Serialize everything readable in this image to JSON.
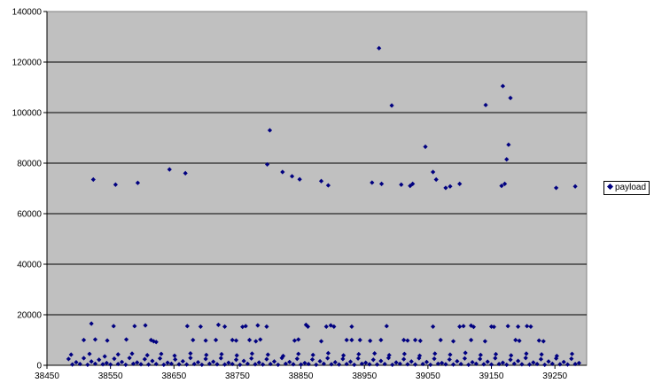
{
  "chart_data": {
    "type": "scatter",
    "title": "",
    "xlabel": "",
    "ylabel": "",
    "xlim": [
      38450,
      39300
    ],
    "ylim": [
      0,
      140000
    ],
    "x_ticks": [
      "38450",
      "38550",
      "38650",
      "38750",
      "38850",
      "38950",
      "39050",
      "39150",
      "39250"
    ],
    "y_ticks": [
      "0",
      "20000",
      "40000",
      "60000",
      "80000",
      "100000",
      "120000",
      "140000"
    ],
    "grid": "horizontal",
    "plot_background": "#c0c0c0",
    "marker_color": "#000080",
    "legend_position": "right",
    "series": [
      {
        "name": "payload",
        "points": [
          [
            38523,
            73500
          ],
          [
            38558,
            71500
          ],
          [
            38593,
            72200
          ],
          [
            38643,
            77500
          ],
          [
            38668,
            76000
          ],
          [
            38797,
            79500
          ],
          [
            38801,
            93000
          ],
          [
            38821,
            76500
          ],
          [
            38836,
            74800
          ],
          [
            38848,
            73600
          ],
          [
            38882,
            72900
          ],
          [
            38893,
            71200
          ],
          [
            38962,
            72300
          ],
          [
            38973,
            125500
          ],
          [
            38977,
            71800
          ],
          [
            38993,
            102800
          ],
          [
            39008,
            71500
          ],
          [
            39022,
            71000
          ],
          [
            39026,
            71800
          ],
          [
            39046,
            86500
          ],
          [
            39058,
            76500
          ],
          [
            39063,
            73500
          ],
          [
            39078,
            70200
          ],
          [
            39085,
            70800
          ],
          [
            39100,
            71800
          ],
          [
            39141,
            103000
          ],
          [
            39166,
            71000
          ],
          [
            39168,
            110500
          ],
          [
            39171,
            71800
          ],
          [
            39174,
            81500
          ],
          [
            39177,
            87300
          ],
          [
            39180,
            105800
          ],
          [
            39252,
            70200
          ],
          [
            39282,
            70800
          ],
          [
            38520,
            16500
          ],
          [
            38555,
            15500
          ],
          [
            38588,
            15500
          ],
          [
            38605,
            15800
          ],
          [
            38671,
            15500
          ],
          [
            38692,
            15300
          ],
          [
            38720,
            16000
          ],
          [
            38730,
            15300
          ],
          [
            38758,
            15200
          ],
          [
            38763,
            15500
          ],
          [
            38782,
            15800
          ],
          [
            38796,
            15300
          ],
          [
            38858,
            16000
          ],
          [
            38861,
            15300
          ],
          [
            38890,
            15300
          ],
          [
            38897,
            15800
          ],
          [
            38902,
            15300
          ],
          [
            38930,
            15300
          ],
          [
            38985,
            15500
          ],
          [
            39058,
            15300
          ],
          [
            39100,
            15300
          ],
          [
            39106,
            15500
          ],
          [
            39118,
            15700
          ],
          [
            39122,
            15200
          ],
          [
            39150,
            15300
          ],
          [
            39154,
            15200
          ],
          [
            39176,
            15500
          ],
          [
            39192,
            15300
          ],
          [
            39206,
            15500
          ],
          [
            39212,
            15300
          ],
          [
            38508,
            10000
          ],
          [
            38526,
            10200
          ],
          [
            38545,
            9800
          ],
          [
            38575,
            10200
          ],
          [
            38614,
            10000
          ],
          [
            38618,
            9500
          ],
          [
            38622,
            9200
          ],
          [
            38680,
            10000
          ],
          [
            38700,
            9800
          ],
          [
            38716,
            10000
          ],
          [
            38742,
            10000
          ],
          [
            38748,
            9800
          ],
          [
            38769,
            10000
          ],
          [
            38779,
            9500
          ],
          [
            38786,
            10200
          ],
          [
            38840,
            9800
          ],
          [
            38846,
            10200
          ],
          [
            38882,
            9500
          ],
          [
            38922,
            10000
          ],
          [
            38930,
            10000
          ],
          [
            38943,
            10000
          ],
          [
            38959,
            9700
          ],
          [
            38976,
            10000
          ],
          [
            39012,
            10000
          ],
          [
            39018,
            9800
          ],
          [
            39030,
            10000
          ],
          [
            39038,
            9700
          ],
          [
            39070,
            10000
          ],
          [
            39090,
            9500
          ],
          [
            39118,
            10000
          ],
          [
            39140,
            9500
          ],
          [
            39188,
            10000
          ],
          [
            39194,
            9700
          ],
          [
            39225,
            9800
          ],
          [
            39232,
            9500
          ],
          [
            38488,
            4200
          ],
          [
            38517,
            4500
          ],
          [
            38541,
            3500
          ],
          [
            38562,
            4300
          ],
          [
            38584,
            4600
          ],
          [
            38608,
            4000
          ],
          [
            38630,
            4500
          ],
          [
            38651,
            3800
          ],
          [
            38676,
            4700
          ],
          [
            38701,
            4100
          ],
          [
            38725,
            4400
          ],
          [
            38749,
            3900
          ],
          [
            38773,
            4600
          ],
          [
            38798,
            4200
          ],
          [
            38822,
            3700
          ],
          [
            38846,
            4500
          ],
          [
            38869,
            4100
          ],
          [
            38893,
            4800
          ],
          [
            38917,
            3900
          ],
          [
            38941,
            4400
          ],
          [
            38966,
            4700
          ],
          [
            38989,
            4000
          ],
          [
            39013,
            4500
          ],
          [
            39037,
            3800
          ],
          [
            39061,
            4600
          ],
          [
            39085,
            4200
          ],
          [
            39109,
            4900
          ],
          [
            39133,
            4100
          ],
          [
            39157,
            4400
          ],
          [
            39181,
            3900
          ],
          [
            39205,
            4600
          ],
          [
            39229,
            4300
          ],
          [
            39253,
            3700
          ],
          [
            39277,
            4500
          ],
          [
            38484,
            2500
          ],
          [
            38496,
            1200
          ],
          [
            38508,
            2800
          ],
          [
            38520,
            1500
          ],
          [
            38532,
            2200
          ],
          [
            38544,
            900
          ],
          [
            38556,
            2600
          ],
          [
            38568,
            1300
          ],
          [
            38580,
            2900
          ],
          [
            38592,
            1100
          ],
          [
            38604,
            2400
          ],
          [
            38616,
            1700
          ],
          [
            38628,
            2700
          ],
          [
            38640,
            1000
          ],
          [
            38652,
            2300
          ],
          [
            38664,
            1600
          ],
          [
            38676,
            2900
          ],
          [
            38688,
            1200
          ],
          [
            38700,
            2500
          ],
          [
            38712,
            1400
          ],
          [
            38724,
            2800
          ],
          [
            38736,
            1000
          ],
          [
            38748,
            2200
          ],
          [
            38760,
            1700
          ],
          [
            38772,
            2700
          ],
          [
            38784,
            1100
          ],
          [
            38796,
            2400
          ],
          [
            38808,
            1500
          ],
          [
            38820,
            2900
          ],
          [
            38832,
            1300
          ],
          [
            38844,
            2600
          ],
          [
            38856,
            900
          ],
          [
            38868,
            2300
          ],
          [
            38880,
            1600
          ],
          [
            38892,
            2800
          ],
          [
            38904,
            1200
          ],
          [
            38916,
            2500
          ],
          [
            38928,
            1400
          ],
          [
            38940,
            2700
          ],
          [
            38952,
            1000
          ],
          [
            38964,
            2200
          ],
          [
            38976,
            1700
          ],
          [
            38988,
            2900
          ],
          [
            39000,
            1100
          ],
          [
            39012,
            2400
          ],
          [
            39024,
            1500
          ],
          [
            39036,
            2800
          ],
          [
            39048,
            1300
          ],
          [
            39060,
            2600
          ],
          [
            39072,
            900
          ],
          [
            39084,
            2300
          ],
          [
            39096,
            1600
          ],
          [
            39108,
            2700
          ],
          [
            39120,
            1200
          ],
          [
            39132,
            2500
          ],
          [
            39144,
            1400
          ],
          [
            39156,
            2800
          ],
          [
            39168,
            1000
          ],
          [
            39180,
            2200
          ],
          [
            39192,
            1700
          ],
          [
            39204,
            2900
          ],
          [
            39216,
            1100
          ],
          [
            39228,
            2400
          ],
          [
            39240,
            1500
          ],
          [
            39252,
            2700
          ],
          [
            39264,
            1300
          ],
          [
            39276,
            2600
          ],
          [
            39288,
            900
          ],
          [
            38490,
            300
          ],
          [
            38502,
            500
          ],
          [
            38514,
            200
          ],
          [
            38526,
            600
          ],
          [
            38538,
            400
          ],
          [
            38550,
            300
          ],
          [
            38562,
            500
          ],
          [
            38574,
            200
          ],
          [
            38586,
            600
          ],
          [
            38598,
            400
          ],
          [
            38610,
            300
          ],
          [
            38622,
            500
          ],
          [
            38634,
            200
          ],
          [
            38646,
            600
          ],
          [
            38658,
            400
          ],
          [
            38670,
            300
          ],
          [
            38682,
            500
          ],
          [
            38694,
            200
          ],
          [
            38706,
            600
          ],
          [
            38718,
            400
          ],
          [
            38730,
            300
          ],
          [
            38742,
            500
          ],
          [
            38754,
            200
          ],
          [
            38766,
            600
          ],
          [
            38778,
            400
          ],
          [
            38790,
            300
          ],
          [
            38802,
            500
          ],
          [
            38814,
            200
          ],
          [
            38826,
            600
          ],
          [
            38838,
            400
          ],
          [
            38850,
            300
          ],
          [
            38862,
            500
          ],
          [
            38874,
            200
          ],
          [
            38886,
            600
          ],
          [
            38898,
            400
          ],
          [
            38910,
            300
          ],
          [
            38922,
            500
          ],
          [
            38934,
            200
          ],
          [
            38946,
            600
          ],
          [
            38958,
            400
          ],
          [
            38970,
            300
          ],
          [
            38982,
            500
          ],
          [
            38994,
            200
          ],
          [
            39006,
            600
          ],
          [
            39018,
            400
          ],
          [
            39030,
            300
          ],
          [
            39042,
            500
          ],
          [
            39054,
            200
          ],
          [
            39066,
            600
          ],
          [
            39078,
            400
          ],
          [
            39090,
            300
          ],
          [
            39102,
            500
          ],
          [
            39114,
            200
          ],
          [
            39126,
            600
          ],
          [
            39138,
            400
          ],
          [
            39150,
            300
          ],
          [
            39162,
            500
          ],
          [
            39174,
            200
          ],
          [
            39186,
            600
          ],
          [
            39198,
            400
          ],
          [
            39210,
            300
          ],
          [
            39222,
            500
          ],
          [
            39234,
            200
          ],
          [
            39246,
            600
          ],
          [
            39258,
            400
          ],
          [
            39270,
            300
          ],
          [
            39282,
            500
          ]
        ]
      }
    ]
  },
  "legend": {
    "label": "payload"
  }
}
